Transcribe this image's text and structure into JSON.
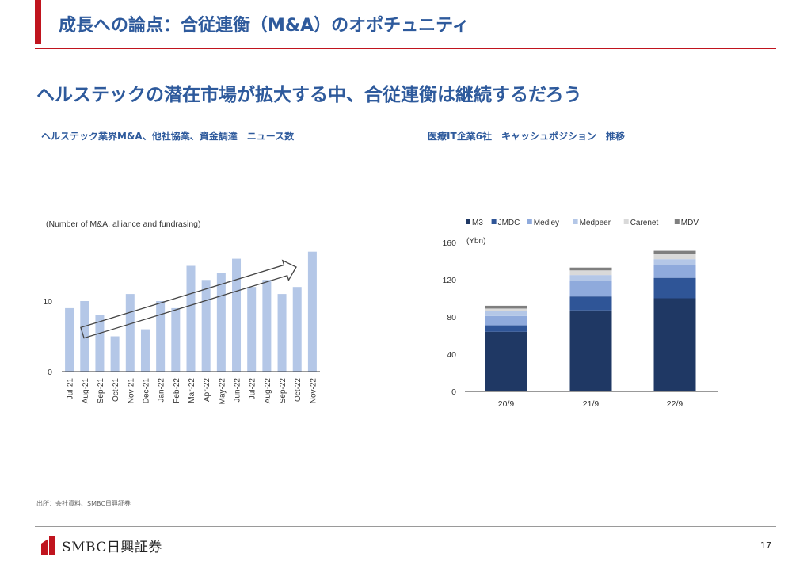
{
  "slide": {
    "title": "成長への論点：合従連衡（M&A）のオポチュニティ",
    "headline": "ヘルステックの潜在市場が拡大する中、合従連衡は継続するだろう",
    "left_subtitle": "ヘルステック業界M&A、他社協業、資金調達　ニュース数",
    "right_subtitle": "医療IT企業6社　キャッシュポジション　推移",
    "source": "出所：会社資料、SMBC日興証券",
    "page_number": "17",
    "brand": "SMBC日興証券"
  },
  "colors": {
    "accent_red": "#c0141e",
    "title_blue": "#2e5a9c",
    "bar_light_blue": "#b4c7e7"
  },
  "chart_data": [
    {
      "type": "bar",
      "title": "ヘルステック業界M&A、他社協業、資金調達　ニュース数",
      "note": "(Number of M&A, alliance and fundrasing)",
      "categories": [
        "Jul-21",
        "Aug-21",
        "Sep-21",
        "Oct-21",
        "Nov-21",
        "Dec-21",
        "Jan-22",
        "Feb-22",
        "Mar-22",
        "Apr-22",
        "May-22",
        "Jun-22",
        "Jul-22",
        "Aug-22",
        "Sep-22",
        "Oct-22",
        "Nov-22"
      ],
      "values": [
        9,
        10,
        8,
        5,
        11,
        6,
        10,
        9,
        15,
        13,
        14,
        16,
        12,
        13,
        11,
        12,
        17
      ],
      "yticks": [
        "0",
        "10"
      ],
      "ylim": [
        0,
        20
      ],
      "grid": false,
      "annotation": "upward trend arrow"
    },
    {
      "type": "bar",
      "stacked": true,
      "title": "医療IT企業6社　キャッシュポジション　推移",
      "unit_label": "(Ybn)",
      "categories": [
        "20/9",
        "21/9",
        "22/9"
      ],
      "yticks": [
        "0",
        "40",
        "80",
        "120",
        "160"
      ],
      "ylim": [
        0,
        160
      ],
      "legend_position": "top",
      "series": [
        {
          "name": "M3",
          "color": "#1f3864",
          "values": [
            64,
            87,
            100
          ]
        },
        {
          "name": "JMDC",
          "color": "#2f5597",
          "values": [
            7,
            15,
            22
          ]
        },
        {
          "name": "Medley",
          "color": "#8faadc",
          "values": [
            10,
            17,
            14
          ]
        },
        {
          "name": "Medpeer",
          "color": "#b4c7e7",
          "values": [
            5,
            6,
            6
          ]
        },
        {
          "name": "Carenet",
          "color": "#d9d9d9",
          "values": [
            3,
            5,
            6
          ]
        },
        {
          "name": "MDV",
          "color": "#7f7f7f",
          "values": [
            3,
            3,
            3
          ]
        }
      ]
    }
  ]
}
